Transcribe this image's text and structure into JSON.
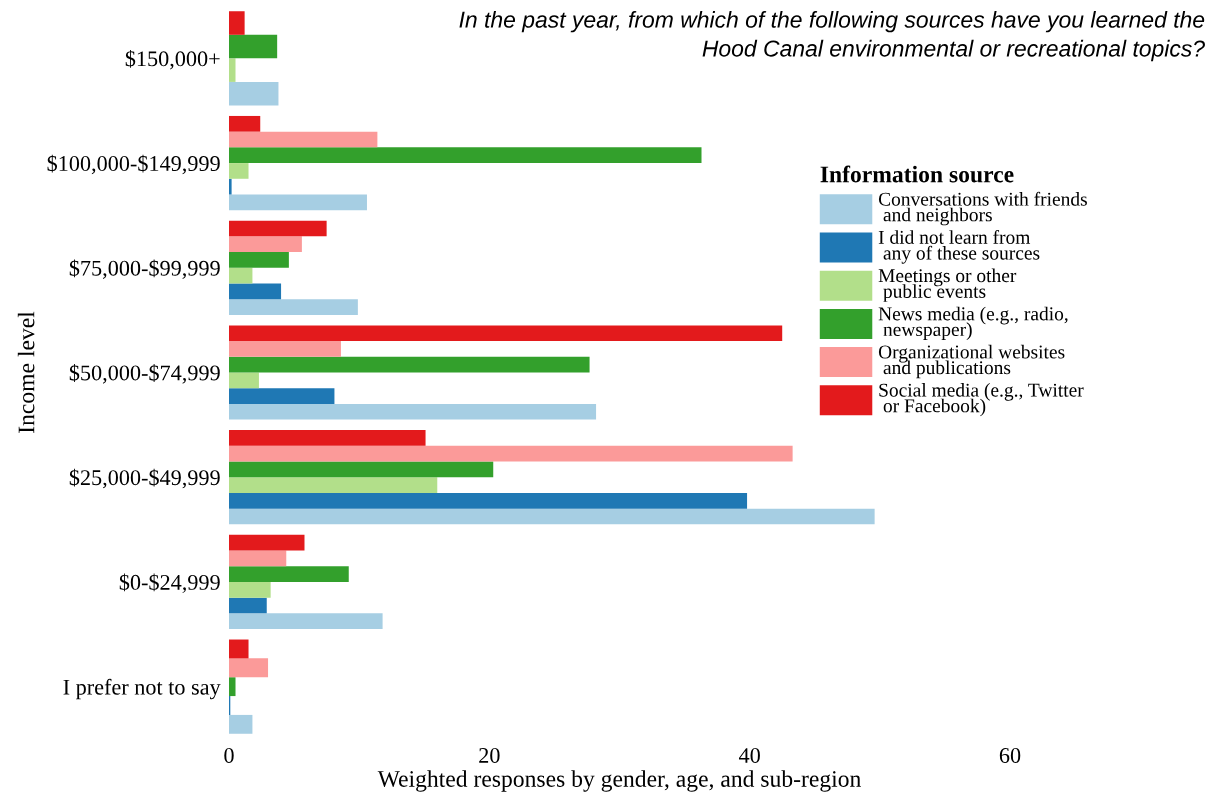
{
  "chart_data": {
    "type": "bar",
    "orientation": "horizontal",
    "title": "In the past year, from which of the following sources have you learned the\n Hood Canal environmental or recreational topics?",
    "xlabel": "Weighted responses by gender, age, and sub-region",
    "ylabel": "Income level",
    "legend_title": "Information source",
    "categories": [
      "$150,000+",
      "$100,000-$149,999",
      "$75,000-$99,999",
      "$50,000-$74,999",
      "$25,000-$49,999",
      "$0-$24,999",
      "I prefer not to say"
    ],
    "series": [
      {
        "name": "Conversations with friends\n and neighbors",
        "color": "#a6cee3",
        "values": [
          3.8,
          10.6,
          9.9,
          28.2,
          49.6,
          11.8,
          1.8
        ]
      },
      {
        "name": "I did not learn from\n any of these sources",
        "color": "#1f78b4",
        "values": [
          null,
          0.2,
          4.0,
          8.1,
          39.8,
          2.9,
          0.1
        ]
      },
      {
        "name": "Meetings or other\n public events",
        "color": "#b2df8a",
        "values": [
          0.5,
          1.5,
          1.8,
          2.3,
          16.0,
          3.2,
          null
        ]
      },
      {
        "name": "News media (e.g., radio,\n newspaper)",
        "color": "#33a02c",
        "values": [
          3.7,
          36.3,
          4.6,
          27.7,
          20.3,
          9.2,
          0.5
        ]
      },
      {
        "name": "Organizational websites\n and publications",
        "color": "#fb9a99",
        "values": [
          null,
          11.4,
          5.6,
          8.6,
          43.3,
          4.4,
          3.0
        ]
      },
      {
        "name": "Social media (e.g., Twitter\n or Facebook)",
        "color": "#e31a1c",
        "values": [
          1.2,
          2.4,
          7.5,
          42.5,
          15.1,
          5.8,
          1.5
        ]
      }
    ],
    "xlim": [
      0,
      60
    ],
    "xticks": [
      0,
      20,
      40,
      60
    ],
    "grid": false,
    "legend": "top right"
  }
}
